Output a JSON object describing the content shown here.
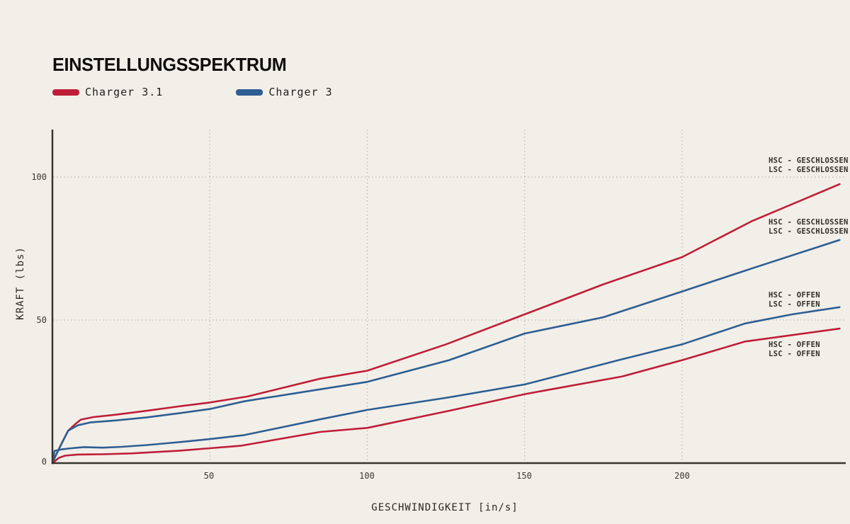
{
  "title": "EINSTELLUNGSSPEKTRUM",
  "legend": [
    {
      "label": "Charger 3.1",
      "color": "#bf1e38"
    },
    {
      "label": "Charger 3",
      "color": "#2e5e92"
    }
  ],
  "axes": {
    "y_label": "KRAFT (lbs)",
    "x_label": "GESCHWINDIGKEIT [in/s]",
    "y_ticks": [
      "100",
      "50",
      "0"
    ],
    "x_ticks": [
      "50",
      "100",
      "150",
      "200"
    ]
  },
  "annotations": [
    {
      "lines": [
        "HSC - GESCHLOSSEN",
        "LSC - GESCHLOSSEN"
      ],
      "series": "Charger 3.1"
    },
    {
      "lines": [
        "HSC - GESCHLOSSEN",
        "LSC - GESCHLOSSEN"
      ],
      "series": "Charger 3"
    },
    {
      "lines": [
        "HSC - OFFEN",
        "LSC - OFFEN"
      ],
      "series": "Charger 3"
    },
    {
      "lines": [
        "HSC - OFFEN",
        "LSC - OFFEN"
      ],
      "series": "Charger 3.1"
    }
  ],
  "colors": {
    "background": "#f2efe9",
    "axis": "#38342e",
    "grid": "#beb9af",
    "red": "#bf1e38",
    "blue": "#2e5e92"
  },
  "chart_data": {
    "type": "line",
    "title": "EINSTELLUNGSSPEKTRUM",
    "xlabel": "GESCHWINDIGKEIT [in/s]",
    "ylabel": "KRAFT (lbs)",
    "xlim": [
      0,
      252
    ],
    "ylim": [
      0,
      117
    ],
    "x_gridlines": [
      50,
      100,
      150,
      200
    ],
    "y_gridlines": [
      50,
      100
    ],
    "grid": "dashed",
    "legend_position": "top-left",
    "series": [
      {
        "name": "Charger 3.1",
        "setting": "HSC/LSC geschlossen",
        "color": "#bf1e38",
        "points": [
          [
            0,
            0
          ],
          [
            1,
            2.5
          ],
          [
            3,
            7
          ],
          [
            5,
            11.3
          ],
          [
            7,
            13.4
          ],
          [
            9,
            15.2
          ],
          [
            13,
            16.1
          ],
          [
            20,
            16.9
          ],
          [
            30,
            18.3
          ],
          [
            40,
            19.8
          ],
          [
            50,
            21.2
          ],
          [
            62,
            23.3
          ],
          [
            85,
            29.5
          ],
          [
            100,
            32.3
          ],
          [
            125,
            41.5
          ],
          [
            150,
            52
          ],
          [
            175,
            62.5
          ],
          [
            200,
            72
          ],
          [
            222,
            84.5
          ],
          [
            250,
            97.5
          ]
        ]
      },
      {
        "name": "Charger 3",
        "setting": "HSC/LSC geschlossen",
        "color": "#2e5e92",
        "points": [
          [
            0,
            0
          ],
          [
            1,
            2.5
          ],
          [
            3,
            7
          ],
          [
            5,
            11.3
          ],
          [
            8,
            13.2
          ],
          [
            12,
            14.2
          ],
          [
            20,
            14.9
          ],
          [
            30,
            16
          ],
          [
            40,
            17.4
          ],
          [
            50,
            18.9
          ],
          [
            61,
            21.6
          ],
          [
            85,
            25.8
          ],
          [
            100,
            28.4
          ],
          [
            126,
            36
          ],
          [
            150,
            45.3
          ],
          [
            175,
            51
          ],
          [
            200,
            60
          ],
          [
            222,
            68
          ],
          [
            250,
            78
          ]
        ]
      },
      {
        "name": "Charger 3",
        "setting": "HSC/LSC offen",
        "color": "#2e5e92",
        "points": [
          [
            0,
            0
          ],
          [
            0.7,
            4.3
          ],
          [
            3,
            4.8
          ],
          [
            6,
            5.2
          ],
          [
            10,
            5.6
          ],
          [
            16,
            5.4
          ],
          [
            22,
            5.7
          ],
          [
            30,
            6.3
          ],
          [
            40,
            7.3
          ],
          [
            50,
            8.4
          ],
          [
            61,
            9.8
          ],
          [
            85,
            15.3
          ],
          [
            100,
            18.6
          ],
          [
            126,
            23
          ],
          [
            150,
            27.5
          ],
          [
            181,
            36.3
          ],
          [
            200,
            41.5
          ],
          [
            220,
            48.8
          ],
          [
            235,
            52
          ],
          [
            250,
            54.5
          ]
        ]
      },
      {
        "name": "Charger 3.1",
        "setting": "HSC/LSC offen",
        "color": "#bf1e38",
        "points": [
          [
            0,
            0
          ],
          [
            2,
            1.8
          ],
          [
            4,
            2.6
          ],
          [
            8,
            3
          ],
          [
            16,
            3.1
          ],
          [
            25,
            3.4
          ],
          [
            40,
            4.3
          ],
          [
            50,
            5.2
          ],
          [
            60,
            6.1
          ],
          [
            85,
            10.9
          ],
          [
            100,
            12.3
          ],
          [
            126,
            18.3
          ],
          [
            150,
            24.1
          ],
          [
            181,
            30.3
          ],
          [
            200,
            36
          ],
          [
            220,
            42.5
          ],
          [
            250,
            47
          ]
        ]
      }
    ]
  }
}
